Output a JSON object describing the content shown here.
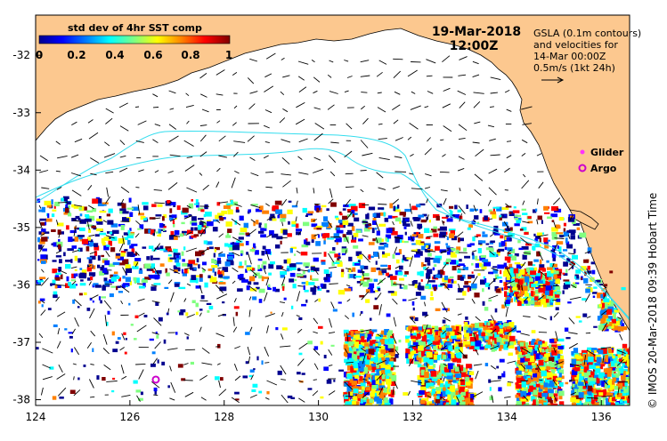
{
  "title": "std dev of 4hr SST comp",
  "date": "19-Mar-2018",
  "time": "12:00Z",
  "info_lines": [
    "GSLA (0.1m contours)",
    "and velocities for",
    "14-Mar 00:00Z",
    "0.5m/s (1kt 24h)"
  ],
  "colorbar": {
    "ticks": [
      "0",
      "0.2",
      "0.4",
      "0.6",
      "0.8",
      "1"
    ],
    "range": [
      0,
      1
    ],
    "colors": [
      "#00008f",
      "#0000ff",
      "#0080ff",
      "#00ffff",
      "#80ff80",
      "#ffff00",
      "#ff8000",
      "#ff0000",
      "#800000"
    ]
  },
  "legend": {
    "glider": "Glider",
    "argo": "Argo",
    "glider_color": "#ff33ff",
    "argo_color": "#cc00cc"
  },
  "argo_float": {
    "lon": 126.55,
    "lat": -37.65
  },
  "axes": {
    "lon_range": [
      124,
      136.6
    ],
    "lat_range": [
      -38.1,
      -31.3
    ],
    "x_ticks": [
      "124",
      "126",
      "128",
      "130",
      "132",
      "134",
      "136"
    ],
    "y_ticks": [
      "-32",
      "-33",
      "-34",
      "-35",
      "-36",
      "-37",
      "-38"
    ]
  },
  "credit": "© IMOS 20-Mar-2018 09:39 Hobart Time",
  "colors": {
    "land": "#fcc88f",
    "contour": "#33ddee",
    "arrow": "#000000"
  }
}
